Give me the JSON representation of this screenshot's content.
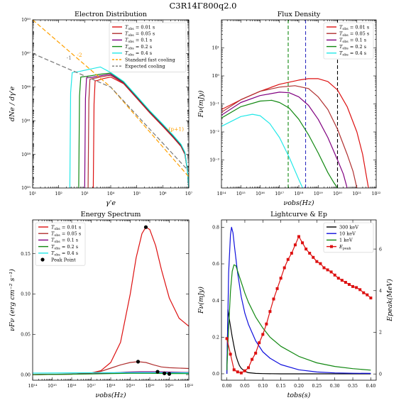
{
  "figure_title": "C3R14Γ800q2.0",
  "colors": {
    "red": "#dd1111",
    "brown": "#b03030",
    "purple": "#800080",
    "green": "#118811",
    "cyan": "#22e8e8",
    "orange": "#ffa000",
    "gray": "#777777",
    "navy_dash": "#3030c0",
    "green_dash": "#118811",
    "black": "#000000",
    "blue": "#1010dd"
  },
  "chart_data": [
    {
      "id": "electron",
      "type": "line",
      "title": "Electron Distribution",
      "xlabel": "γ'e",
      "ylabel": "dNe / dγ'e",
      "xscale": "log",
      "yscale": "log",
      "xlim": [
        1,
        7
      ],
      "ylim": [
        35,
        50
      ],
      "xticks": [
        {
          "v": 1,
          "t": "10¹"
        },
        {
          "v": 2,
          "t": "10²"
        },
        {
          "v": 3,
          "t": "10³"
        },
        {
          "v": 4,
          "t": "10⁴"
        },
        {
          "v": 5,
          "t": "10⁵"
        },
        {
          "v": 6,
          "t": "10⁶"
        },
        {
          "v": 7,
          "t": "10⁷"
        }
      ],
      "yticks": [
        {
          "v": 35,
          "t": "10³⁵"
        },
        {
          "v": 38,
          "t": "10³⁸"
        },
        {
          "v": 41,
          "t": "10⁴¹"
        },
        {
          "v": 44,
          "t": "10⁴⁴"
        },
        {
          "v": 47,
          "t": "10⁴⁷"
        },
        {
          "v": 50,
          "t": "10⁵⁰"
        }
      ],
      "legend": "top-right",
      "series": [
        {
          "name": "Tobs = 0.01 s",
          "color": "red",
          "x": [
            3.33,
            3.36,
            3.4,
            3.5,
            3.7,
            4.0,
            4.5,
            5.0,
            5.5,
            6.0,
            6.4,
            6.7,
            6.85,
            6.95,
            7.0
          ],
          "y": [
            35,
            42.5,
            44.55,
            44.6,
            44.75,
            44.9,
            44.3,
            43.0,
            41.7,
            40.5,
            39.5,
            38.7,
            38.0,
            36.5,
            35
          ]
        },
        {
          "name": "Tobs = 0.05 s",
          "color": "brown",
          "x": [
            3.13,
            3.16,
            3.2,
            3.35,
            3.7,
            4.0,
            4.5,
            5.0,
            5.5,
            6.0,
            6.4,
            6.7,
            6.85,
            6.95,
            7.0
          ],
          "y": [
            35,
            42.8,
            44.7,
            44.78,
            44.95,
            45.05,
            44.35,
            43.05,
            41.75,
            40.55,
            39.55,
            38.75,
            38.05,
            36.5,
            35
          ]
        },
        {
          "name": "Tobs = 0.1 s",
          "color": "purple",
          "x": [
            3.0,
            3.03,
            3.07,
            3.3,
            3.7,
            4.0,
            4.5,
            5.0,
            5.5,
            6.0,
            6.4,
            6.7,
            6.85,
            6.95,
            7.0
          ],
          "y": [
            35,
            43.0,
            44.82,
            44.88,
            45.05,
            45.15,
            44.4,
            43.1,
            41.8,
            40.6,
            39.6,
            38.8,
            38.1,
            36.5,
            35
          ]
        },
        {
          "name": "Tobs = 0.2 s",
          "color": "green",
          "x": [
            2.77,
            2.8,
            2.85,
            3.2,
            3.6,
            4.0,
            4.5,
            5.0,
            5.5,
            6.0,
            6.4,
            6.7,
            6.85,
            6.95,
            7.0
          ],
          "y": [
            35,
            43.2,
            44.9,
            45.0,
            45.15,
            45.25,
            44.45,
            43.15,
            41.85,
            40.65,
            39.65,
            38.85,
            38.15,
            36.5,
            35
          ]
        },
        {
          "name": "Tobs = 0.4 s",
          "color": "cyan",
          "x": [
            2.43,
            2.46,
            2.52,
            2.8,
            3.2,
            3.6,
            4.0,
            4.5,
            5.0,
            5.5,
            6.0,
            6.4,
            6.7,
            6.85,
            6.95,
            7.0
          ],
          "y": [
            35,
            43.5,
            45.3,
            45.4,
            45.6,
            45.8,
            45.3,
            44.5,
            43.2,
            41.9,
            40.7,
            39.7,
            38.9,
            38.2,
            36.5,
            35
          ]
        },
        {
          "name": "Standard fast cooling",
          "color": "orange",
          "dash": "6 3",
          "x": [
            1.0,
            4.0,
            7.0
          ],
          "y": [
            50.0,
            44.0,
            36.0
          ]
        },
        {
          "name": "Expected cooling",
          "color": "gray",
          "dash": "6 3",
          "x": [
            1.0,
            4.0,
            7.0
          ],
          "y": [
            47.0,
            44.0,
            36.5
          ]
        }
      ],
      "annotations": [
        {
          "text": "-2",
          "x": 2.7,
          "y": 46.7,
          "color": "orange"
        },
        {
          "text": "-1",
          "x": 2.3,
          "y": 46.45,
          "color": "gray"
        },
        {
          "text": "-(p+1)",
          "x": 6.15,
          "y": 40.1,
          "color": "orange"
        }
      ]
    },
    {
      "id": "flux",
      "type": "line",
      "title": "Flux Density",
      "xlabel": "νobs(Hz)",
      "ylabel": "Fν(mJy)",
      "xscale": "log",
      "yscale": "log",
      "xlim": [
        14,
        22
      ],
      "ylim": [
        -4,
        2
      ],
      "xticks": [
        {
          "v": 14,
          "t": "10¹⁴"
        },
        {
          "v": 15,
          "t": "10¹⁵"
        },
        {
          "v": 16,
          "t": "10¹⁶"
        },
        {
          "v": 17,
          "t": "10¹⁷"
        },
        {
          "v": 18,
          "t": "10¹⁸"
        },
        {
          "v": 19,
          "t": "10¹⁹"
        },
        {
          "v": 20,
          "t": "10²⁰"
        },
        {
          "v": 21,
          "t": "10²¹"
        },
        {
          "v": 22,
          "t": "10²²"
        }
      ],
      "yticks": [
        {
          "v": -3,
          "t": "10⁻³"
        },
        {
          "v": -2,
          "t": "10⁻²"
        },
        {
          "v": -1,
          "t": "10⁻¹"
        },
        {
          "v": 0,
          "t": "10⁰"
        },
        {
          "v": 1,
          "t": "10¹"
        }
      ],
      "legend": "top-right",
      "vlines": [
        {
          "x": 17.45,
          "color": "green_dash"
        },
        {
          "x": 18.35,
          "color": "navy_dash"
        },
        {
          "x": 20.0,
          "color": "black"
        }
      ],
      "series": [
        {
          "name": "Tobs = 0.01 s",
          "color": "red",
          "x": [
            14,
            15,
            16,
            17,
            18,
            18.5,
            19,
            19.5,
            20,
            20.5,
            21,
            21.3,
            21.6
          ],
          "y": [
            -1.2,
            -0.85,
            -0.55,
            -0.3,
            -0.15,
            -0.1,
            -0.1,
            -0.2,
            -0.5,
            -1.1,
            -2.0,
            -2.8,
            -4
          ]
        },
        {
          "name": "Tobs = 0.05 s",
          "color": "brown",
          "x": [
            14,
            15,
            16,
            17,
            17.8,
            18.5,
            19,
            19.5,
            20,
            20.5,
            20.8,
            21.0
          ],
          "y": [
            -1.3,
            -0.85,
            -0.55,
            -0.4,
            -0.35,
            -0.45,
            -0.75,
            -1.2,
            -1.9,
            -2.8,
            -3.4,
            -4
          ]
        },
        {
          "name": "Tobs = 0.1 s",
          "color": "purple",
          "x": [
            14,
            15,
            16,
            17,
            17.5,
            18,
            18.5,
            19,
            19.5,
            20,
            20.3,
            20.5
          ],
          "y": [
            -1.4,
            -0.95,
            -0.7,
            -0.58,
            -0.6,
            -0.75,
            -1.05,
            -1.55,
            -2.2,
            -3.0,
            -3.5,
            -4
          ]
        },
        {
          "name": "Tobs = 0.2 s",
          "color": "green",
          "x": [
            14,
            15,
            16,
            16.6,
            17,
            17.5,
            18,
            18.5,
            19,
            19.5,
            19.8,
            20.0
          ],
          "y": [
            -1.5,
            -1.1,
            -0.9,
            -0.87,
            -0.95,
            -1.15,
            -1.55,
            -2.1,
            -2.75,
            -3.45,
            -3.8,
            -4
          ]
        },
        {
          "name": "Tobs = 0.4 s",
          "color": "cyan",
          "x": [
            14,
            15,
            15.6,
            16,
            16.5,
            17,
            17.5,
            18,
            18.2
          ],
          "y": [
            -1.8,
            -1.45,
            -1.37,
            -1.42,
            -1.7,
            -2.2,
            -2.9,
            -3.7,
            -4
          ]
        }
      ]
    },
    {
      "id": "energy",
      "type": "line",
      "title": "Energy Spectrum",
      "xlabel": "νobs(Hz)",
      "ylabel": "νFν (erg cm⁻² s⁻¹)",
      "xscale": "log",
      "yscale": "linear",
      "xlim": [
        14,
        22
      ],
      "ylim": [
        -0.007,
        0.192
      ],
      "xticks": [
        {
          "v": 14,
          "t": "10¹⁴"
        },
        {
          "v": 15,
          "t": "10¹⁵"
        },
        {
          "v": 16,
          "t": "10¹⁶"
        },
        {
          "v": 17,
          "t": "10¹⁷"
        },
        {
          "v": 18,
          "t": "10¹⁸"
        },
        {
          "v": 19,
          "t": "10¹⁹"
        },
        {
          "v": 20,
          "t": "10²⁰"
        },
        {
          "v": 21,
          "t": "10²¹"
        },
        {
          "v": 22,
          "t": "10²²"
        }
      ],
      "yticks": [
        {
          "v": 0.0,
          "t": "0.00"
        },
        {
          "v": 0.05,
          "t": "0.05"
        },
        {
          "v": 0.1,
          "t": "0.10"
        },
        {
          "v": 0.15,
          "t": "0.15"
        }
      ],
      "legend": "top-left",
      "series": [
        {
          "name": "Tobs = 0.01 s",
          "color": "red",
          "x": [
            14,
            16,
            17,
            17.5,
            18,
            18.5,
            19,
            19.3,
            19.6,
            19.8,
            20.0,
            20.3,
            20.6,
            21.0,
            21.5,
            22
          ],
          "y": [
            0.0,
            0.0005,
            0.002,
            0.005,
            0.015,
            0.04,
            0.1,
            0.145,
            0.175,
            0.183,
            0.18,
            0.16,
            0.13,
            0.095,
            0.07,
            0.06
          ]
        },
        {
          "name": "Tobs = 0.05 s",
          "color": "brown",
          "x": [
            14,
            16,
            17,
            17.5,
            18,
            18.5,
            19.0,
            19.4,
            19.8,
            20.2,
            20.6,
            21,
            22
          ],
          "y": [
            0.0,
            0.0005,
            0.002,
            0.004,
            0.008,
            0.012,
            0.015,
            0.016,
            0.015,
            0.012,
            0.0095,
            0.0085,
            0.0075
          ]
        },
        {
          "name": "Tobs = 0.1 s",
          "color": "purple",
          "x": [
            14,
            17,
            18,
            18.8,
            19.5,
            20.2,
            20.8,
            21.5,
            22
          ],
          "y": [
            0.0,
            0.001,
            0.002,
            0.003,
            0.0035,
            0.0035,
            0.0032,
            0.0028,
            0.0026
          ]
        },
        {
          "name": "Tobs = 0.2 s",
          "color": "green",
          "x": [
            14,
            17,
            18,
            19,
            20,
            21,
            22
          ],
          "y": [
            0.0,
            0.0008,
            0.0012,
            0.0015,
            0.0015,
            0.0013,
            0.0012
          ]
        },
        {
          "name": "Tobs = 0.4 s",
          "color": "cyan",
          "x": [
            14,
            16,
            18,
            20,
            22
          ],
          "y": [
            0.0018,
            0.0022,
            0.0024,
            0.0023,
            0.0022
          ]
        }
      ],
      "points": {
        "name": "Peak Point",
        "color": "black",
        "x": [
          19.8,
          19.4,
          20.4,
          20.75,
          21.0
        ],
        "y": [
          0.183,
          0.016,
          0.0035,
          0.0015,
          0.0008
        ]
      }
    },
    {
      "id": "lightcurve",
      "type": "line",
      "title": "Lightcurve & Ep",
      "xlabel": "tobs(s)",
      "ylabel": "Fν(mJy)",
      "y2label": "Epeak(MeV)",
      "xscale": "linear",
      "yscale": "linear",
      "xlim": [
        -0.015,
        0.415
      ],
      "ylim": [
        -0.035,
        0.84
      ],
      "y2lim": [
        -0.3,
        7.4
      ],
      "xticks": [
        {
          "v": 0.0,
          "t": "0.00"
        },
        {
          "v": 0.05,
          "t": "0.05"
        },
        {
          "v": 0.1,
          "t": "0.10"
        },
        {
          "v": 0.15,
          "t": "0.15"
        },
        {
          "v": 0.2,
          "t": "0.20"
        },
        {
          "v": 0.25,
          "t": "0.25"
        },
        {
          "v": 0.3,
          "t": "0.30"
        },
        {
          "v": 0.35,
          "t": "0.35"
        },
        {
          "v": 0.4,
          "t": "0.40"
        }
      ],
      "yticks": [
        {
          "v": 0.0,
          "t": "0.0"
        },
        {
          "v": 0.2,
          "t": "0.2"
        },
        {
          "v": 0.4,
          "t": "0.4"
        },
        {
          "v": 0.6,
          "t": "0.6"
        },
        {
          "v": 0.8,
          "t": "0.8"
        }
      ],
      "y2ticks": [
        {
          "v": 0,
          "t": "0"
        },
        {
          "v": 2,
          "t": "2"
        },
        {
          "v": 4,
          "t": "4"
        },
        {
          "v": 6,
          "t": "6"
        }
      ],
      "legend": "top-right",
      "series": [
        {
          "name": "300 keV",
          "color": "black",
          "x": [
            0.0,
            0.003,
            0.006,
            0.01,
            0.015,
            0.02,
            0.025,
            0.03,
            0.035,
            0.04,
            0.05,
            0.06,
            0.08,
            0.1,
            0.15,
            0.2,
            0.3,
            0.4
          ],
          "y": [
            0.0,
            0.35,
            0.31,
            0.26,
            0.2,
            0.15,
            0.1,
            0.07,
            0.045,
            0.03,
            0.013,
            0.006,
            0.002,
            0.001,
            0.0,
            0.0,
            0.0,
            0.0
          ]
        },
        {
          "name": "10 keV",
          "color": "blue",
          "x": [
            0.0,
            0.005,
            0.01,
            0.013,
            0.017,
            0.022,
            0.03,
            0.04,
            0.05,
            0.06,
            0.08,
            0.1,
            0.12,
            0.15,
            0.2,
            0.25,
            0.3,
            0.35,
            0.4
          ],
          "y": [
            0.0,
            0.55,
            0.76,
            0.8,
            0.77,
            0.68,
            0.55,
            0.42,
            0.33,
            0.27,
            0.18,
            0.12,
            0.085,
            0.05,
            0.022,
            0.01,
            0.005,
            0.003,
            0.002
          ]
        },
        {
          "name": "1 keV",
          "color": "green",
          "x": [
            0.0,
            0.005,
            0.01,
            0.015,
            0.02,
            0.025,
            0.03,
            0.04,
            0.05,
            0.06,
            0.08,
            0.1,
            0.12,
            0.15,
            0.2,
            0.25,
            0.3,
            0.35,
            0.4
          ],
          "y": [
            0.02,
            0.25,
            0.45,
            0.56,
            0.595,
            0.59,
            0.56,
            0.5,
            0.44,
            0.39,
            0.31,
            0.25,
            0.2,
            0.15,
            0.095,
            0.06,
            0.04,
            0.028,
            0.02
          ]
        },
        {
          "name": "Epeak",
          "color": "red",
          "axis": "y2",
          "marker": "square",
          "x": [
            0.0,
            0.01,
            0.02,
            0.03,
            0.04,
            0.05,
            0.06,
            0.07,
            0.08,
            0.09,
            0.1,
            0.11,
            0.12,
            0.13,
            0.14,
            0.15,
            0.16,
            0.17,
            0.18,
            0.19,
            0.2,
            0.21,
            0.22,
            0.23,
            0.24,
            0.25,
            0.26,
            0.27,
            0.28,
            0.29,
            0.3,
            0.31,
            0.32,
            0.33,
            0.34,
            0.35,
            0.36,
            0.37,
            0.38,
            0.39,
            0.4
          ],
          "y": [
            1.7,
            0.95,
            0.2,
            0.1,
            0.05,
            0.15,
            0.3,
            0.7,
            1.0,
            1.5,
            1.9,
            2.4,
            3.0,
            3.6,
            4.1,
            4.6,
            5.1,
            5.5,
            5.8,
            6.2,
            6.6,
            6.3,
            6.0,
            5.8,
            5.6,
            5.4,
            5.3,
            5.1,
            5.0,
            4.9,
            4.75,
            4.6,
            4.5,
            4.4,
            4.3,
            4.2,
            4.15,
            4.05,
            3.9,
            3.8,
            3.65
          ]
        }
      ]
    }
  ]
}
